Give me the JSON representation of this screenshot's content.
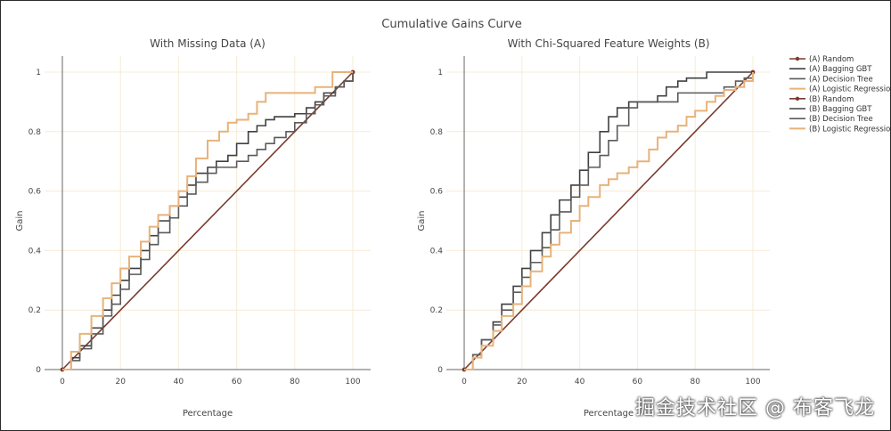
{
  "chart_data": {
    "type": "line",
    "title": "Cumulative Gains Curve",
    "watermark": "掘金技术社区 @ 布客飞龙",
    "colors": {
      "random": "#7a3b2e",
      "bagging_gbt": "#404040",
      "decision_tree": "#5a5a5a",
      "logistic_regression": "#e8b27a"
    },
    "legend": [
      {
        "label": "(A) Random",
        "series": "random",
        "marker": true
      },
      {
        "label": "(A) Bagging GBT",
        "series": "bagging_gbt"
      },
      {
        "label": "(A) Decision Tree",
        "series": "decision_tree"
      },
      {
        "label": "(A) Logistic Regression",
        "series": "logistic_regression"
      },
      {
        "label": "(B) Random",
        "series": "random",
        "marker": true
      },
      {
        "label": "(B) Bagging GBT",
        "series": "bagging_gbt"
      },
      {
        "label": "(B) Decision Tree",
        "series": "decision_tree"
      },
      {
        "label": "(B) Logistic Regression",
        "series": "logistic_regression"
      }
    ],
    "panels": [
      {
        "subtitle": "With Missing Data (A)",
        "xlabel": "Percentage",
        "ylabel": "Gain",
        "xlim": [
          0,
          100
        ],
        "ylim": [
          0,
          1
        ],
        "xticks": [
          0,
          20,
          40,
          60,
          80,
          100
        ],
        "yticks": [
          0,
          0.2,
          0.4,
          0.6,
          0.8,
          1
        ],
        "series": [
          {
            "name": "(A) Random",
            "key": "random",
            "x": [
              0,
              100
            ],
            "y": [
              0,
              1
            ]
          },
          {
            "name": "(A) Bagging GBT",
            "key": "bagging_gbt",
            "x": [
              0,
              3,
              6,
              10,
              14,
              17,
              20,
              23,
              27,
              30,
              33,
              37,
              40,
              43,
              46,
              50,
              53,
              57,
              60,
              64,
              67,
              70,
              73,
              77,
              80,
              84,
              87,
              90,
              94,
              97,
              100
            ],
            "y": [
              0,
              0.04,
              0.08,
              0.14,
              0.2,
              0.25,
              0.3,
              0.34,
              0.4,
              0.45,
              0.5,
              0.55,
              0.58,
              0.62,
              0.66,
              0.68,
              0.7,
              0.72,
              0.76,
              0.8,
              0.82,
              0.84,
              0.85,
              0.85,
              0.86,
              0.88,
              0.9,
              0.93,
              0.95,
              0.97,
              1
            ]
          },
          {
            "name": "(A) Decision Tree",
            "key": "decision_tree",
            "x": [
              0,
              3,
              6,
              10,
              14,
              17,
              20,
              23,
              27,
              30,
              33,
              37,
              40,
              43,
              46,
              50,
              53,
              57,
              60,
              64,
              67,
              70,
              73,
              77,
              80,
              84,
              87,
              90,
              94,
              97,
              100
            ],
            "y": [
              0,
              0.03,
              0.07,
              0.12,
              0.18,
              0.22,
              0.27,
              0.32,
              0.37,
              0.42,
              0.46,
              0.51,
              0.55,
              0.59,
              0.63,
              0.66,
              0.68,
              0.68,
              0.7,
              0.72,
              0.74,
              0.76,
              0.78,
              0.8,
              0.83,
              0.86,
              0.89,
              0.92,
              0.95,
              0.97,
              1
            ]
          },
          {
            "name": "(A) Logistic Regression",
            "key": "logistic_regression",
            "x": [
              0,
              3,
              6,
              10,
              14,
              17,
              20,
              23,
              27,
              30,
              33,
              37,
              40,
              43,
              46,
              50,
              54,
              57,
              60,
              64,
              67,
              70,
              74,
              77,
              80,
              84,
              87,
              90,
              93,
              96,
              100
            ],
            "y": [
              0,
              0.06,
              0.12,
              0.18,
              0.24,
              0.29,
              0.34,
              0.38,
              0.43,
              0.48,
              0.52,
              0.55,
              0.6,
              0.65,
              0.71,
              0.77,
              0.8,
              0.83,
              0.84,
              0.86,
              0.9,
              0.93,
              0.93,
              0.93,
              0.93,
              0.93,
              0.95,
              0.95,
              1,
              1,
              1
            ]
          }
        ]
      },
      {
        "subtitle": "With Chi-Squared Feature Weights (B)",
        "xlabel": "Percentage",
        "ylabel": "Gain",
        "xlim": [
          0,
          100
        ],
        "ylim": [
          0,
          1
        ],
        "xticks": [
          0,
          20,
          40,
          60,
          80,
          100
        ],
        "yticks": [
          0,
          0.2,
          0.4,
          0.6,
          0.8,
          1
        ],
        "series": [
          {
            "name": "(B) Random",
            "key": "random",
            "x": [
              0,
              100
            ],
            "y": [
              0,
              1
            ]
          },
          {
            "name": "(B) Bagging GBT",
            "key": "bagging_gbt",
            "x": [
              0,
              3,
              6,
              10,
              13,
              17,
              20,
              23,
              27,
              30,
              33,
              37,
              40,
              43,
              47,
              50,
              53,
              57,
              60,
              64,
              67,
              70,
              74,
              77,
              80,
              84,
              87,
              90,
              94,
              97,
              100
            ],
            "y": [
              0,
              0.05,
              0.1,
              0.16,
              0.22,
              0.28,
              0.34,
              0.4,
              0.46,
              0.52,
              0.57,
              0.62,
              0.67,
              0.73,
              0.8,
              0.85,
              0.88,
              0.9,
              0.9,
              0.9,
              0.92,
              0.95,
              0.97,
              0.98,
              0.98,
              1,
              1,
              1,
              1,
              1,
              1
            ]
          },
          {
            "name": "(B) Decision Tree",
            "key": "decision_tree",
            "x": [
              0,
              3,
              6,
              10,
              13,
              17,
              20,
              23,
              27,
              30,
              33,
              37,
              40,
              43,
              47,
              50,
              53,
              57,
              60,
              64,
              67,
              70,
              74,
              77,
              80,
              84,
              87,
              90,
              94,
              97,
              100
            ],
            "y": [
              0,
              0.05,
              0.1,
              0.15,
              0.2,
              0.26,
              0.31,
              0.36,
              0.41,
              0.47,
              0.53,
              0.58,
              0.62,
              0.68,
              0.72,
              0.77,
              0.82,
              0.88,
              0.9,
              0.9,
              0.9,
              0.9,
              0.93,
              0.93,
              0.93,
              0.93,
              0.93,
              0.95,
              0.97,
              0.98,
              1
            ]
          },
          {
            "name": "(B) Logistic Regression",
            "key": "logistic_regression",
            "x": [
              0,
              3,
              6,
              10,
              13,
              17,
              20,
              23,
              27,
              30,
              33,
              37,
              40,
              43,
              47,
              50,
              53,
              57,
              60,
              64,
              67,
              70,
              74,
              77,
              80,
              84,
              87,
              90,
              94,
              97,
              100
            ],
            "y": [
              0,
              0.04,
              0.08,
              0.13,
              0.18,
              0.22,
              0.28,
              0.33,
              0.38,
              0.42,
              0.46,
              0.5,
              0.55,
              0.58,
              0.62,
              0.64,
              0.66,
              0.68,
              0.7,
              0.74,
              0.78,
              0.8,
              0.82,
              0.85,
              0.87,
              0.9,
              0.92,
              0.94,
              0.95,
              0.97,
              1
            ]
          }
        ]
      }
    ]
  }
}
